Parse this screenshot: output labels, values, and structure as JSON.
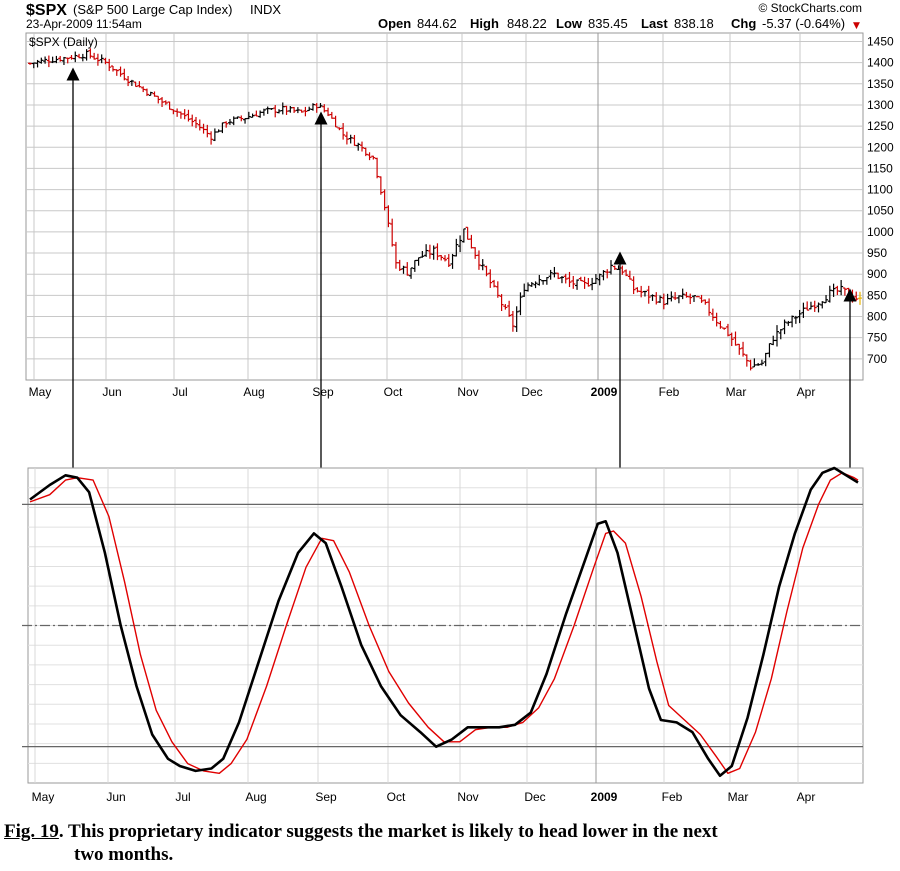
{
  "header": {
    "symbol": "$SPX",
    "name": "(S&P 500 Large Cap Index)",
    "exchange": "INDX",
    "date": "23-Apr-2009 11:54am",
    "source": "© StockCharts.com",
    "open_label": "Open",
    "open": "844.62",
    "high_label": "High",
    "high": "848.22",
    "low_label": "Low",
    "low": "835.45",
    "last_label": "Last",
    "last": "838.18",
    "chg_label": "Chg",
    "chg": "-5.37 (-0.64%)",
    "chg_marker": "▼"
  },
  "caption": {
    "fig_label": "Fig. 19",
    "text_line1": ". This proprietary indicator suggests the market is likely to head lower in the next",
    "text_line2": "two months."
  },
  "colors": {
    "up": "#000000",
    "down": "#cc0000",
    "signal": "#e00000",
    "grid": "#c8c8c8",
    "last_bar": "#e8b400"
  },
  "chart_data": [
    {
      "type": "ohlc",
      "title": "$SPX (Daily)",
      "y_ticks": [
        700,
        750,
        800,
        850,
        900,
        950,
        1000,
        1050,
        1100,
        1150,
        1200,
        1250,
        1300,
        1350,
        1400,
        1450
      ],
      "ylim": [
        650,
        1470
      ],
      "x_ticks": [
        {
          "label": "May",
          "bold": false
        },
        {
          "label": "Jun",
          "bold": false
        },
        {
          "label": "Jul",
          "bold": false
        },
        {
          "label": "Aug",
          "bold": false
        },
        {
          "label": "Sep",
          "bold": false
        },
        {
          "label": "Oct",
          "bold": false
        },
        {
          "label": "Nov",
          "bold": false
        },
        {
          "label": "Dec",
          "bold": false
        },
        {
          "label": "2009",
          "bold": true
        },
        {
          "label": "Feb",
          "bold": false
        },
        {
          "label": "Mar",
          "bold": false
        },
        {
          "label": "Apr",
          "bold": false
        }
      ],
      "price_path": [
        [
          0,
          1398
        ],
        [
          4,
          1405
        ],
        [
          10,
          1412
        ],
        [
          15,
          1420
        ],
        [
          20,
          1400
        ],
        [
          26,
          1360
        ],
        [
          32,
          1325
        ],
        [
          38,
          1290
        ],
        [
          44,
          1255
        ],
        [
          48,
          1225
        ],
        [
          52,
          1260
        ],
        [
          57,
          1270
        ],
        [
          62,
          1285
        ],
        [
          67,
          1290
        ],
        [
          72,
          1282
        ],
        [
          76,
          1300
        ],
        [
          79,
          1280
        ],
        [
          83,
          1230
        ],
        [
          87,
          1205
        ],
        [
          91,
          1175
        ],
        [
          94,
          1060
        ],
        [
          97,
          925
        ],
        [
          100,
          905
        ],
        [
          103,
          940
        ],
        [
          107,
          955
        ],
        [
          111,
          930
        ],
        [
          115,
          1005
        ],
        [
          119,
          930
        ],
        [
          122,
          880
        ],
        [
          125,
          830
        ],
        [
          128,
          780
        ],
        [
          131,
          870
        ],
        [
          135,
          890
        ],
        [
          139,
          900
        ],
        [
          143,
          880
        ],
        [
          147,
          875
        ],
        [
          151,
          895
        ],
        [
          154,
          920
        ],
        [
          157,
          910
        ],
        [
          160,
          865
        ],
        [
          164,
          850
        ],
        [
          168,
          835
        ],
        [
          172,
          845
        ],
        [
          176,
          845
        ],
        [
          179,
          825
        ],
        [
          182,
          790
        ],
        [
          185,
          760
        ],
        [
          188,
          720
        ],
        [
          191,
          683
        ],
        [
          194,
          690
        ],
        [
          197,
          750
        ],
        [
          200,
          780
        ],
        [
          203,
          800
        ],
        [
          206,
          820
        ],
        [
          209,
          835
        ],
        [
          212,
          855
        ],
        [
          215,
          862
        ],
        [
          218,
          850
        ],
        [
          220,
          838
        ]
      ]
    },
    {
      "type": "line",
      "title": "",
      "x_ticks": [
        {
          "label": "May",
          "bold": false
        },
        {
          "label": "Jun",
          "bold": false
        },
        {
          "label": "Jul",
          "bold": false
        },
        {
          "label": "Aug",
          "bold": false
        },
        {
          "label": "Sep",
          "bold": false
        },
        {
          "label": "Oct",
          "bold": false
        },
        {
          "label": "Nov",
          "bold": false
        },
        {
          "label": "Dec",
          "bold": false
        },
        {
          "label": "2009",
          "bold": true
        },
        {
          "label": "Feb",
          "bold": false
        },
        {
          "label": "Mar",
          "bold": false
        },
        {
          "label": "Apr",
          "bold": false
        }
      ],
      "ylim": [
        -15,
        115
      ],
      "ref_lines": [
        0,
        50,
        100
      ],
      "series": [
        {
          "role": "indicator",
          "points": [
            [
              0,
              102
            ],
            [
              5,
              108
            ],
            [
              9,
              112
            ],
            [
              12,
              111
            ],
            [
              15,
              105
            ],
            [
              19,
              80
            ],
            [
              23,
              50
            ],
            [
              27,
              25
            ],
            [
              31,
              5
            ],
            [
              35,
              -5
            ],
            [
              38,
              -8
            ],
            [
              42,
              -10
            ],
            [
              46,
              -9
            ],
            [
              49,
              -5
            ],
            [
              53,
              10
            ],
            [
              58,
              35
            ],
            [
              63,
              60
            ],
            [
              68,
              80
            ],
            [
              72,
              88
            ],
            [
              75,
              84
            ],
            [
              79,
              66
            ],
            [
              84,
              42
            ],
            [
              89,
              25
            ],
            [
              94,
              13
            ],
            [
              99,
              6
            ],
            [
              103,
              0
            ],
            [
              107,
              3
            ],
            [
              111,
              8
            ],
            [
              115,
              8
            ],
            [
              119,
              8
            ],
            [
              123,
              9
            ],
            [
              127,
              14
            ],
            [
              131,
              30
            ],
            [
              136,
              55
            ],
            [
              141,
              78
            ],
            [
              144,
              92
            ],
            [
              146,
              93
            ],
            [
              149,
              80
            ],
            [
              153,
              52
            ],
            [
              157,
              24
            ],
            [
              160,
              11
            ],
            [
              164,
              10
            ],
            [
              168,
              6
            ],
            [
              172,
              -5
            ],
            [
              175,
              -12
            ],
            [
              178,
              -8
            ],
            [
              182,
              12
            ],
            [
              186,
              38
            ],
            [
              190,
              66
            ],
            [
              194,
              88
            ],
            [
              198,
              106
            ],
            [
              201,
              113
            ],
            [
              204,
              115
            ],
            [
              207,
              112
            ],
            [
              210,
              109
            ]
          ]
        },
        {
          "role": "signal",
          "points": [
            [
              0,
              101
            ],
            [
              5,
              104
            ],
            [
              9,
              110
            ],
            [
              12,
              111
            ],
            [
              16,
              110
            ],
            [
              20,
              95
            ],
            [
              24,
              68
            ],
            [
              28,
              38
            ],
            [
              32,
              15
            ],
            [
              36,
              2
            ],
            [
              40,
              -7
            ],
            [
              44,
              -10
            ],
            [
              48,
              -11
            ],
            [
              51,
              -7
            ],
            [
              55,
              3
            ],
            [
              60,
              25
            ],
            [
              65,
              50
            ],
            [
              70,
              74
            ],
            [
              74,
              86
            ],
            [
              77,
              85
            ],
            [
              81,
              72
            ],
            [
              86,
              50
            ],
            [
              91,
              31
            ],
            [
              96,
              18
            ],
            [
              101,
              8
            ],
            [
              105,
              2
            ],
            [
              109,
              2
            ],
            [
              113,
              7
            ],
            [
              117,
              8
            ],
            [
              121,
              8
            ],
            [
              125,
              10
            ],
            [
              129,
              16
            ],
            [
              133,
              28
            ],
            [
              138,
              50
            ],
            [
              143,
              74
            ],
            [
              146,
              88
            ],
            [
              148,
              89
            ],
            [
              151,
              84
            ],
            [
              155,
              62
            ],
            [
              159,
              35
            ],
            [
              162,
              17
            ],
            [
              166,
              11
            ],
            [
              170,
              5
            ],
            [
              174,
              -4
            ],
            [
              177,
              -11
            ],
            [
              180,
              -9
            ],
            [
              184,
              6
            ],
            [
              188,
              28
            ],
            [
              192,
              56
            ],
            [
              196,
              82
            ],
            [
              200,
              100
            ],
            [
              203,
              110
            ],
            [
              206,
              113
            ],
            [
              209,
              111
            ],
            [
              210,
              110
            ]
          ]
        }
      ]
    }
  ]
}
